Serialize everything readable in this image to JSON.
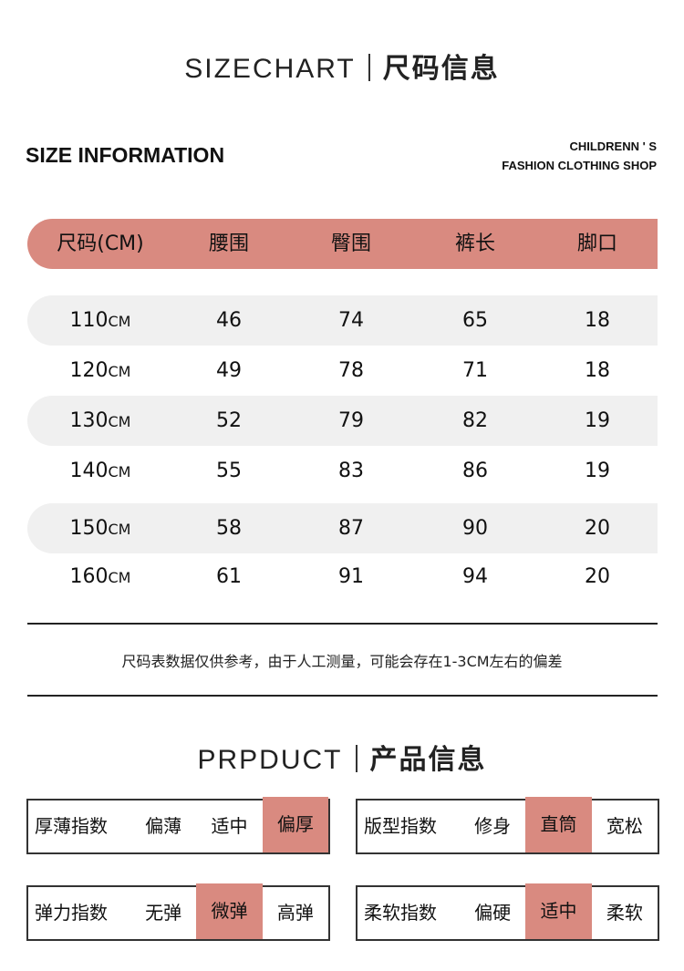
{
  "size_title": {
    "en": "SIZECHART",
    "cn": "尺码信息"
  },
  "size_information": "SIZE INFORMATION",
  "shop": {
    "line1": "CHILDRENN ' S",
    "line2": "FASHION CLOTHING SHOP"
  },
  "table": {
    "headers": [
      "尺码(CM)",
      "腰围",
      "臀围",
      "裤长",
      "脚口"
    ],
    "rows": [
      {
        "size": "110",
        "unit": "CM",
        "values": [
          "46",
          "74",
          "65",
          "18"
        ]
      },
      {
        "size": "120",
        "unit": "CM",
        "values": [
          "49",
          "78",
          "71",
          "18"
        ]
      },
      {
        "size": "130",
        "unit": "CM",
        "values": [
          "52",
          "79",
          "82",
          "19"
        ]
      },
      {
        "size": "140",
        "unit": "CM",
        "values": [
          "55",
          "83",
          "86",
          "19"
        ]
      },
      {
        "size": "150",
        "unit": "CM",
        "values": [
          "58",
          "87",
          "90",
          "20"
        ]
      },
      {
        "size": "160",
        "unit": "CM",
        "values": [
          "61",
          "91",
          "94",
          "20"
        ]
      }
    ]
  },
  "note": "尺码表数据仅供参考，由于人工测量，可能会存在1-3CM左右的偏差",
  "product_title": {
    "en": "PRPDUCT",
    "cn": "产品信息"
  },
  "accent_color": "#d98a80",
  "indices": [
    {
      "label": "厚薄指数",
      "options": [
        "偏薄",
        "适中",
        "偏厚"
      ],
      "selected": 2
    },
    {
      "label": "版型指数",
      "options": [
        "修身",
        "直筒",
        "宽松"
      ],
      "selected": 1
    },
    {
      "label": "弹力指数",
      "options": [
        "无弹",
        "微弹",
        "高弹"
      ],
      "selected": 1
    },
    {
      "label": "柔软指数",
      "options": [
        "偏硬",
        "适中",
        "柔软"
      ],
      "selected": 1
    }
  ]
}
